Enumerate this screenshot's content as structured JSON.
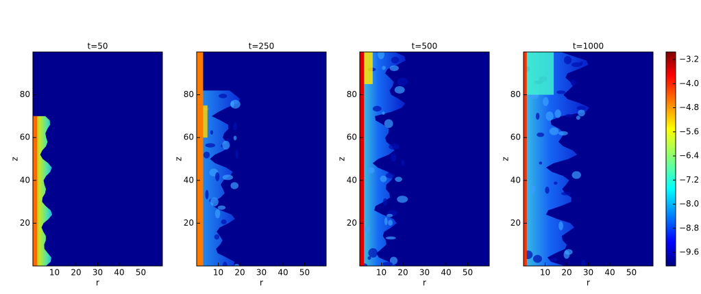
{
  "chart_data": {
    "type": "heatmap",
    "panels": [
      {
        "title": "t=50"
      },
      {
        "title": "t=250"
      },
      {
        "title": "t=500"
      },
      {
        "title": "t=1000"
      }
    ],
    "xlabel": "r",
    "ylabel": "z",
    "xlim": [
      0,
      60
    ],
    "xticks": [
      10,
      20,
      30,
      40,
      50
    ],
    "ylim": [
      0,
      100
    ],
    "yticks": [
      20,
      40,
      60,
      80
    ],
    "colorbar": {
      "lim": [
        -10.05,
        -2.95
      ],
      "ticks": [
        {
          "value": -3.2,
          "label": "−3.2"
        },
        {
          "value": -4.0,
          "label": "−4.0"
        },
        {
          "value": -4.8,
          "label": "−4.8"
        },
        {
          "value": -5.6,
          "label": "−5.6"
        },
        {
          "value": -6.4,
          "label": "−6.4"
        },
        {
          "value": -7.2,
          "label": "−7.2"
        },
        {
          "value": -8.0,
          "label": "−8.0"
        },
        {
          "value": -8.8,
          "label": "−8.8"
        },
        {
          "value": -9.6,
          "label": "−9.6"
        }
      ]
    }
  }
}
